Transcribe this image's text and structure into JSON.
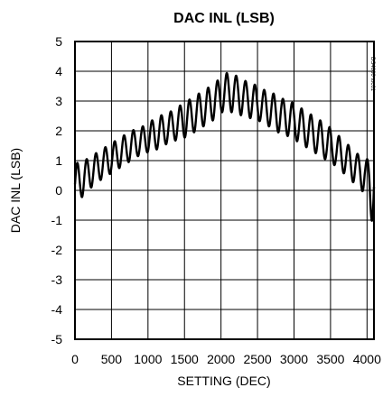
{
  "chart_data": {
    "type": "line",
    "title": "DAC INL (LSB)",
    "xlabel": "SETTING (DEC)",
    "ylabel": "DAC INL (LSB)",
    "xlim": [
      0,
      4095
    ],
    "ylim": [
      -5,
      5
    ],
    "x_ticks": [
      0,
      500,
      1000,
      1500,
      2000,
      2500,
      3000,
      3500,
      4000
    ],
    "y_ticks": [
      5,
      4,
      3,
      2,
      1,
      0,
      -1,
      -2,
      -3,
      -4,
      -5
    ],
    "grid": true,
    "figure_id": "DS4660 toc01",
    "series": [
      {
        "x": [
          0,
          128,
          256,
          384,
          512,
          640,
          768,
          896,
          1024,
          1152,
          1280,
          1408,
          1536,
          1664,
          1792,
          1920,
          2048,
          2176,
          2304,
          2432,
          2560,
          2688,
          2816,
          2944,
          3072,
          3200,
          3328,
          3456,
          3584,
          3712,
          3840,
          3968,
          4095
        ],
        "y_mean": [
          0.2,
          0.45,
          0.7,
          0.9,
          1.1,
          1.3,
          1.5,
          1.65,
          1.8,
          1.95,
          2.1,
          2.25,
          2.4,
          2.6,
          2.8,
          3.05,
          3.3,
          3.3,
          3.15,
          3.0,
          2.85,
          2.7,
          2.55,
          2.4,
          2.2,
          2.0,
          1.8,
          1.55,
          1.3,
          1.05,
          0.8,
          0.55,
          0.2
        ],
        "y_min": [
          -0.3,
          -0.2,
          0.2,
          0.4,
          0.6,
          0.8,
          1.0,
          1.2,
          1.3,
          1.4,
          1.6,
          1.7,
          1.8,
          2.0,
          2.2,
          2.4,
          2.7,
          2.6,
          2.5,
          2.4,
          2.3,
          2.1,
          1.9,
          1.8,
          1.6,
          1.4,
          1.2,
          1.0,
          0.8,
          0.5,
          0.2,
          -0.1,
          -1.3
        ],
        "y_max": [
          0.9,
          1.0,
          1.2,
          1.4,
          1.6,
          1.8,
          2.0,
          2.1,
          2.3,
          2.5,
          2.6,
          2.8,
          3.0,
          3.2,
          3.4,
          3.6,
          3.95,
          3.9,
          3.7,
          3.6,
          3.4,
          3.3,
          3.1,
          3.0,
          2.8,
          2.6,
          2.4,
          2.2,
          1.9,
          1.6,
          1.3,
          1.0,
          1.2
        ]
      }
    ]
  }
}
